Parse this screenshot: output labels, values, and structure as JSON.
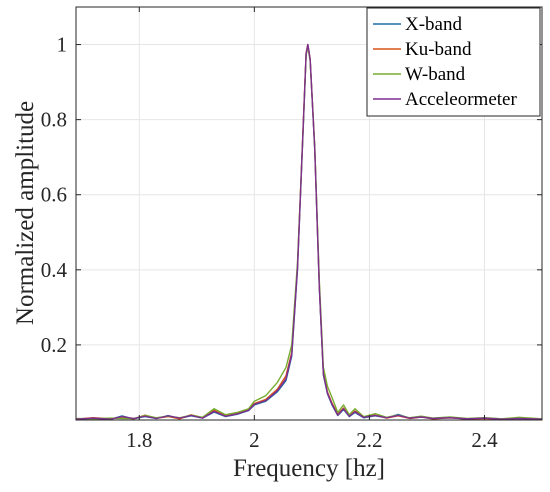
{
  "chart_data": {
    "type": "line",
    "title": "",
    "xlabel": "Frequency [hz]",
    "ylabel": "Normalized amplitude",
    "xlim": [
      1.69,
      2.5
    ],
    "ylim": [
      0,
      1.1
    ],
    "xticks": [
      1.8,
      2.0,
      2.2,
      2.4
    ],
    "xtick_labels": [
      "1.8",
      "2",
      "2.2",
      "2.4"
    ],
    "yticks": [
      0.2,
      0.4,
      0.6,
      0.8,
      1.0
    ],
    "ytick_labels": [
      "0.2",
      "0.4",
      "0.6",
      "0.8",
      "1"
    ],
    "grid": true,
    "legend_position": "top-right",
    "series": [
      {
        "name": "X-band",
        "color": "#1f6fa6",
        "points": [
          [
            1.69,
            0.003
          ],
          [
            1.72,
            0.004
          ],
          [
            1.75,
            0.002
          ],
          [
            1.77,
            0.011
          ],
          [
            1.79,
            0.003
          ],
          [
            1.81,
            0.009
          ],
          [
            1.83,
            0.004
          ],
          [
            1.85,
            0.012
          ],
          [
            1.87,
            0.004
          ],
          [
            1.89,
            0.011
          ],
          [
            1.91,
            0.005
          ],
          [
            1.93,
            0.021
          ],
          [
            1.95,
            0.009
          ],
          [
            1.97,
            0.015
          ],
          [
            1.99,
            0.025
          ],
          [
            2.0,
            0.04
          ],
          [
            2.02,
            0.05
          ],
          [
            2.04,
            0.075
          ],
          [
            2.055,
            0.105
          ],
          [
            2.065,
            0.17
          ],
          [
            2.075,
            0.4
          ],
          [
            2.085,
            0.78
          ],
          [
            2.09,
            0.975
          ],
          [
            2.093,
            1.0
          ],
          [
            2.097,
            0.96
          ],
          [
            2.105,
            0.72
          ],
          [
            2.113,
            0.35
          ],
          [
            2.12,
            0.12
          ],
          [
            2.127,
            0.07
          ],
          [
            2.135,
            0.04
          ],
          [
            2.145,
            0.012
          ],
          [
            2.155,
            0.028
          ],
          [
            2.165,
            0.009
          ],
          [
            2.175,
            0.02
          ],
          [
            2.19,
            0.006
          ],
          [
            2.21,
            0.011
          ],
          [
            2.23,
            0.006
          ],
          [
            2.25,
            0.015
          ],
          [
            2.27,
            0.005
          ],
          [
            2.29,
            0.009
          ],
          [
            2.31,
            0.004
          ],
          [
            2.34,
            0.007
          ],
          [
            2.37,
            0.003
          ],
          [
            2.4,
            0.005
          ],
          [
            2.43,
            0.003
          ],
          [
            2.46,
            0.004
          ],
          [
            2.5,
            0.002
          ]
        ]
      },
      {
        "name": "Ku-band",
        "color": "#d95319",
        "points": [
          [
            1.69,
            0.002
          ],
          [
            1.72,
            0.006
          ],
          [
            1.75,
            0.003
          ],
          [
            1.77,
            0.008
          ],
          [
            1.79,
            0.003
          ],
          [
            1.81,
            0.013
          ],
          [
            1.83,
            0.005
          ],
          [
            1.85,
            0.009
          ],
          [
            1.87,
            0.003
          ],
          [
            1.89,
            0.014
          ],
          [
            1.91,
            0.006
          ],
          [
            1.93,
            0.026
          ],
          [
            1.95,
            0.011
          ],
          [
            1.97,
            0.018
          ],
          [
            1.99,
            0.027
          ],
          [
            2.0,
            0.044
          ],
          [
            2.02,
            0.055
          ],
          [
            2.04,
            0.082
          ],
          [
            2.055,
            0.118
          ],
          [
            2.065,
            0.18
          ],
          [
            2.075,
            0.41
          ],
          [
            2.085,
            0.79
          ],
          [
            2.09,
            0.978
          ],
          [
            2.093,
            1.0
          ],
          [
            2.097,
            0.962
          ],
          [
            2.105,
            0.725
          ],
          [
            2.113,
            0.355
          ],
          [
            2.12,
            0.125
          ],
          [
            2.127,
            0.075
          ],
          [
            2.135,
            0.045
          ],
          [
            2.145,
            0.015
          ],
          [
            2.155,
            0.032
          ],
          [
            2.165,
            0.011
          ],
          [
            2.175,
            0.024
          ],
          [
            2.19,
            0.008
          ],
          [
            2.21,
            0.013
          ],
          [
            2.23,
            0.005
          ],
          [
            2.25,
            0.011
          ],
          [
            2.27,
            0.004
          ],
          [
            2.29,
            0.008
          ],
          [
            2.31,
            0.003
          ],
          [
            2.34,
            0.006
          ],
          [
            2.37,
            0.003
          ],
          [
            2.4,
            0.004
          ],
          [
            2.43,
            0.002
          ],
          [
            2.46,
            0.005
          ],
          [
            2.5,
            0.002
          ]
        ]
      },
      {
        "name": "W-band",
        "color": "#77ac30",
        "points": [
          [
            1.69,
            0.004
          ],
          [
            1.72,
            0.003
          ],
          [
            1.75,
            0.005
          ],
          [
            1.77,
            0.004
          ],
          [
            1.79,
            0.004
          ],
          [
            1.81,
            0.012
          ],
          [
            1.83,
            0.006
          ],
          [
            1.85,
            0.01
          ],
          [
            1.87,
            0.006
          ],
          [
            1.89,
            0.013
          ],
          [
            1.91,
            0.007
          ],
          [
            1.93,
            0.03
          ],
          [
            1.95,
            0.014
          ],
          [
            1.97,
            0.02
          ],
          [
            1.99,
            0.03
          ],
          [
            2.0,
            0.05
          ],
          [
            2.02,
            0.065
          ],
          [
            2.04,
            0.1
          ],
          [
            2.055,
            0.14
          ],
          [
            2.065,
            0.2
          ],
          [
            2.075,
            0.42
          ],
          [
            2.085,
            0.78
          ],
          [
            2.09,
            0.97
          ],
          [
            2.093,
            0.995
          ],
          [
            2.097,
            0.955
          ],
          [
            2.105,
            0.73
          ],
          [
            2.113,
            0.37
          ],
          [
            2.12,
            0.14
          ],
          [
            2.127,
            0.09
          ],
          [
            2.135,
            0.06
          ],
          [
            2.145,
            0.02
          ],
          [
            2.155,
            0.04
          ],
          [
            2.165,
            0.014
          ],
          [
            2.175,
            0.03
          ],
          [
            2.19,
            0.009
          ],
          [
            2.21,
            0.017
          ],
          [
            2.23,
            0.007
          ],
          [
            2.25,
            0.013
          ],
          [
            2.27,
            0.006
          ],
          [
            2.29,
            0.01
          ],
          [
            2.31,
            0.005
          ],
          [
            2.34,
            0.008
          ],
          [
            2.37,
            0.004
          ],
          [
            2.4,
            0.006
          ],
          [
            2.43,
            0.003
          ],
          [
            2.46,
            0.007
          ],
          [
            2.5,
            0.003
          ]
        ]
      },
      {
        "name": "Acceleormeter",
        "color": "#7e2f8e",
        "points": [
          [
            1.69,
            0.002
          ],
          [
            1.72,
            0.005
          ],
          [
            1.75,
            0.002
          ],
          [
            1.77,
            0.009
          ],
          [
            1.79,
            0.004
          ],
          [
            1.81,
            0.01
          ],
          [
            1.83,
            0.004
          ],
          [
            1.85,
            0.011
          ],
          [
            1.87,
            0.005
          ],
          [
            1.89,
            0.012
          ],
          [
            1.91,
            0.005
          ],
          [
            1.93,
            0.023
          ],
          [
            1.95,
            0.01
          ],
          [
            1.97,
            0.016
          ],
          [
            1.99,
            0.026
          ],
          [
            2.0,
            0.042
          ],
          [
            2.02,
            0.052
          ],
          [
            2.04,
            0.078
          ],
          [
            2.055,
            0.11
          ],
          [
            2.065,
            0.175
          ],
          [
            2.075,
            0.405
          ],
          [
            2.085,
            0.785
          ],
          [
            2.09,
            0.976
          ],
          [
            2.093,
            1.0
          ],
          [
            2.097,
            0.961
          ],
          [
            2.105,
            0.722
          ],
          [
            2.113,
            0.352
          ],
          [
            2.12,
            0.122
          ],
          [
            2.127,
            0.072
          ],
          [
            2.135,
            0.042
          ],
          [
            2.145,
            0.013
          ],
          [
            2.155,
            0.03
          ],
          [
            2.165,
            0.01
          ],
          [
            2.175,
            0.022
          ],
          [
            2.19,
            0.007
          ],
          [
            2.21,
            0.012
          ],
          [
            2.23,
            0.006
          ],
          [
            2.25,
            0.012
          ],
          [
            2.27,
            0.005
          ],
          [
            2.29,
            0.008
          ],
          [
            2.31,
            0.004
          ],
          [
            2.34,
            0.006
          ],
          [
            2.37,
            0.003
          ],
          [
            2.4,
            0.005
          ],
          [
            2.43,
            0.002
          ],
          [
            2.46,
            0.004
          ],
          [
            2.5,
            0.002
          ]
        ]
      }
    ]
  }
}
